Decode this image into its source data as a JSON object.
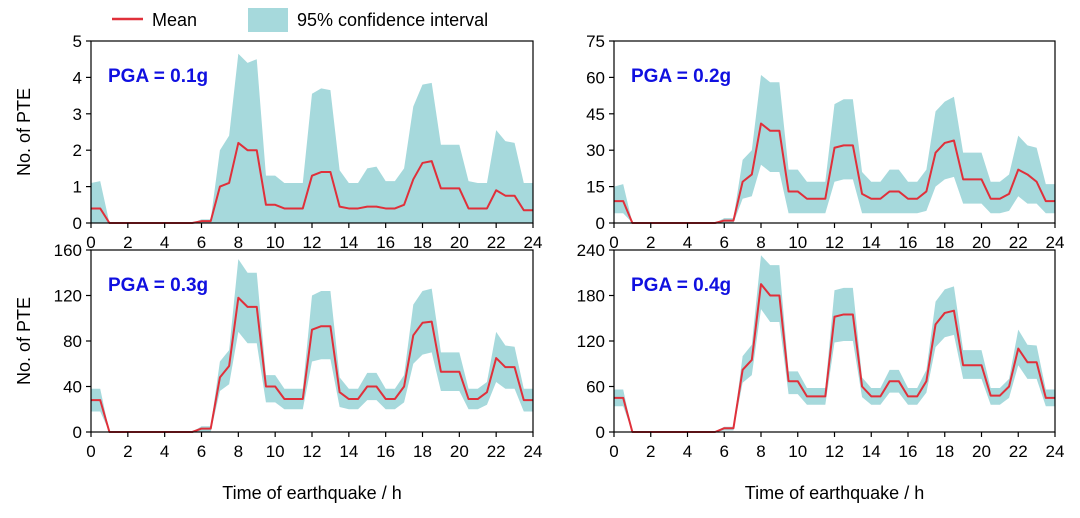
{
  "legend": {
    "mean_label": "Mean",
    "ci_label": "95% confidence interval"
  },
  "colors": {
    "mean": "#e0303a",
    "ci": "#a6d9dc",
    "label": "#1010e0",
    "axis": "#000000"
  },
  "chart_data": [
    {
      "type": "area",
      "title": "PGA = 0.1g",
      "xlabel": "",
      "ylabel": "No. of PTE",
      "xlim": [
        0,
        24
      ],
      "ylim": [
        0,
        5
      ],
      "xticks": [
        "0",
        "2",
        "4",
        "6",
        "8",
        "10",
        "12",
        "14",
        "16",
        "18",
        "20",
        "22",
        "24"
      ],
      "yticks": [
        "0",
        "1",
        "2",
        "3",
        "4",
        "5"
      ],
      "x": [
        0,
        0.5,
        1,
        1.5,
        2,
        2.5,
        3,
        3.5,
        4,
        4.5,
        5,
        5.5,
        6,
        6.5,
        7,
        7.5,
        8,
        8.5,
        9,
        9.5,
        10,
        10.5,
        11,
        11.5,
        12,
        12.5,
        13,
        13.5,
        14,
        14.5,
        15,
        15.5,
        16,
        16.5,
        17,
        17.5,
        18,
        18.5,
        19,
        19.5,
        20,
        20.5,
        21,
        21.5,
        22,
        22.5,
        23,
        23.5,
        24
      ],
      "series": [
        {
          "name": "Mean",
          "values": [
            0.4,
            0.4,
            0,
            0,
            0,
            0,
            0,
            0,
            0,
            0,
            0,
            0,
            0.05,
            0.05,
            1.0,
            1.1,
            2.2,
            2.0,
            2.0,
            0.5,
            0.5,
            0.4,
            0.4,
            0.4,
            1.3,
            1.4,
            1.4,
            0.45,
            0.4,
            0.4,
            0.45,
            0.45,
            0.4,
            0.4,
            0.5,
            1.2,
            1.65,
            1.7,
            0.95,
            0.95,
            0.95,
            0.4,
            0.4,
            0.4,
            0.9,
            0.75,
            0.75,
            0.35,
            0.35
          ]
        },
        {
          "name": "95% CI upper",
          "values": [
            1.1,
            1.15,
            0,
            0,
            0,
            0,
            0,
            0,
            0,
            0,
            0,
            0,
            0.1,
            0.1,
            2.0,
            2.4,
            4.65,
            4.4,
            4.5,
            1.3,
            1.3,
            1.1,
            1.1,
            1.1,
            3.55,
            3.7,
            3.65,
            1.45,
            1.1,
            1.1,
            1.5,
            1.55,
            1.15,
            1.15,
            1.5,
            3.2,
            3.8,
            3.85,
            2.15,
            2.15,
            2.15,
            1.15,
            1.1,
            1.1,
            2.55,
            2.25,
            2.2,
            1.1,
            1.1
          ]
        },
        {
          "name": "95% CI lower",
          "values": [
            0,
            0,
            0,
            0,
            0,
            0,
            0,
            0,
            0,
            0,
            0,
            0,
            0,
            0,
            0,
            0,
            0,
            0,
            0,
            0,
            0,
            0,
            0,
            0,
            0,
            0,
            0,
            0,
            0,
            0,
            0,
            0,
            0,
            0,
            0,
            0,
            0,
            0,
            0,
            0,
            0,
            0,
            0,
            0,
            0,
            0,
            0,
            0,
            0
          ]
        }
      ]
    },
    {
      "type": "area",
      "title": "PGA = 0.2g",
      "xlabel": "",
      "ylabel": "",
      "xlim": [
        0,
        24
      ],
      "ylim": [
        0,
        75
      ],
      "xticks": [
        "0",
        "2",
        "4",
        "6",
        "8",
        "10",
        "12",
        "14",
        "16",
        "18",
        "20",
        "22",
        "24"
      ],
      "yticks": [
        "0",
        "15",
        "30",
        "45",
        "60",
        "75"
      ],
      "x": [
        0,
        0.5,
        1,
        1.5,
        2,
        2.5,
        3,
        3.5,
        4,
        4.5,
        5,
        5.5,
        6,
        6.5,
        7,
        7.5,
        8,
        8.5,
        9,
        9.5,
        10,
        10.5,
        11,
        11.5,
        12,
        12.5,
        13,
        13.5,
        14,
        14.5,
        15,
        15.5,
        16,
        16.5,
        17,
        17.5,
        18,
        18.5,
        19,
        19.5,
        20,
        20.5,
        21,
        21.5,
        22,
        22.5,
        23,
        23.5,
        24
      ],
      "series": [
        {
          "name": "Mean",
          "values": [
            9,
            9,
            0,
            0,
            0,
            0,
            0,
            0,
            0,
            0,
            0,
            0,
            1,
            1,
            17,
            20,
            41,
            38,
            38,
            13,
            13,
            10,
            10,
            10,
            31,
            32,
            32,
            12,
            10,
            10,
            13,
            13,
            10,
            10,
            13,
            29,
            33,
            34,
            18,
            18,
            18,
            10,
            10,
            12,
            22,
            20,
            17,
            9,
            9
          ]
        },
        {
          "name": "95% CI upper",
          "values": [
            15,
            16,
            0,
            0,
            0,
            0,
            0,
            0,
            0,
            0,
            0,
            0,
            2,
            2,
            26,
            30,
            61,
            58,
            58,
            22,
            22,
            17,
            17,
            17,
            49,
            51,
            51,
            21,
            17,
            17,
            22,
            22,
            17,
            17,
            22,
            46,
            50,
            52,
            29,
            29,
            29,
            17,
            17,
            20,
            36,
            32,
            31,
            16,
            16
          ]
        },
        {
          "name": "95% CI lower",
          "values": [
            4,
            4,
            0,
            0,
            0,
            0,
            0,
            0,
            0,
            0,
            0,
            0,
            0,
            0,
            10,
            11,
            24,
            21,
            21,
            4,
            4,
            4,
            4,
            4,
            17,
            18,
            18,
            4,
            4,
            4,
            4,
            4,
            4,
            4,
            5,
            15,
            18,
            19,
            8,
            8,
            8,
            4,
            4,
            5,
            11,
            8,
            8,
            4,
            4
          ]
        }
      ]
    },
    {
      "type": "area",
      "title": "PGA = 0.3g",
      "xlabel": "Time of earthquake / h",
      "ylabel": "No. of PTE",
      "xlim": [
        0,
        24
      ],
      "ylim": [
        0,
        160
      ],
      "xticks": [
        "0",
        "2",
        "4",
        "6",
        "8",
        "10",
        "12",
        "14",
        "16",
        "18",
        "20",
        "22",
        "24"
      ],
      "yticks": [
        "0",
        "40",
        "80",
        "120",
        "160"
      ],
      "x": [
        0,
        0.5,
        1,
        1.5,
        2,
        2.5,
        3,
        3.5,
        4,
        4.5,
        5,
        5.5,
        6,
        6.5,
        7,
        7.5,
        8,
        8.5,
        9,
        9.5,
        10,
        10.5,
        11,
        11.5,
        12,
        12.5,
        13,
        13.5,
        14,
        14.5,
        15,
        15.5,
        16,
        16.5,
        17,
        17.5,
        18,
        18.5,
        19,
        19.5,
        20,
        20.5,
        21,
        21.5,
        22,
        22.5,
        23,
        23.5,
        24
      ],
      "series": [
        {
          "name": "Mean",
          "values": [
            28,
            28,
            0,
            0,
            0,
            0,
            0,
            0,
            0,
            0,
            0,
            0,
            3,
            3,
            48,
            58,
            118,
            110,
            110,
            40,
            40,
            29,
            29,
            29,
            90,
            93,
            93,
            35,
            29,
            29,
            40,
            40,
            29,
            29,
            40,
            85,
            96,
            97,
            53,
            53,
            53,
            29,
            29,
            35,
            65,
            57,
            57,
            28,
            28
          ]
        },
        {
          "name": "95% CI upper",
          "values": [
            38,
            38,
            0,
            0,
            0,
            0,
            0,
            0,
            0,
            0,
            0,
            0,
            5,
            5,
            62,
            72,
            152,
            140,
            140,
            50,
            50,
            38,
            38,
            38,
            120,
            124,
            124,
            48,
            38,
            38,
            52,
            52,
            38,
            38,
            50,
            112,
            124,
            126,
            70,
            70,
            70,
            38,
            38,
            44,
            88,
            76,
            75,
            38,
            38
          ]
        },
        {
          "name": "95% CI lower",
          "values": [
            18,
            18,
            0,
            0,
            0,
            0,
            0,
            0,
            0,
            0,
            0,
            0,
            0,
            0,
            36,
            42,
            88,
            78,
            78,
            26,
            26,
            20,
            20,
            20,
            62,
            64,
            64,
            22,
            20,
            20,
            28,
            28,
            20,
            20,
            26,
            60,
            68,
            70,
            36,
            36,
            36,
            20,
            20,
            24,
            44,
            38,
            38,
            18,
            18
          ]
        }
      ]
    },
    {
      "type": "area",
      "title": "PGA = 0.4g",
      "xlabel": "Time of earthquake / h",
      "ylabel": "",
      "xlim": [
        0,
        24
      ],
      "ylim": [
        0,
        240
      ],
      "xticks": [
        "0",
        "2",
        "4",
        "6",
        "8",
        "10",
        "12",
        "14",
        "16",
        "18",
        "20",
        "22",
        "24"
      ],
      "yticks": [
        "0",
        "60",
        "120",
        "180",
        "240"
      ],
      "x": [
        0,
        0.5,
        1,
        1.5,
        2,
        2.5,
        3,
        3.5,
        4,
        4.5,
        5,
        5.5,
        6,
        6.5,
        7,
        7.5,
        8,
        8.5,
        9,
        9.5,
        10,
        10.5,
        11,
        11.5,
        12,
        12.5,
        13,
        13.5,
        14,
        14.5,
        15,
        15.5,
        16,
        16.5,
        17,
        17.5,
        18,
        18.5,
        19,
        19.5,
        20,
        20.5,
        21,
        21.5,
        22,
        22.5,
        23,
        23.5,
        24
      ],
      "series": [
        {
          "name": "Mean",
          "values": [
            45,
            45,
            0,
            0,
            0,
            0,
            0,
            0,
            0,
            0,
            0,
            0,
            5,
            5,
            82,
            95,
            195,
            180,
            180,
            67,
            67,
            47,
            47,
            47,
            152,
            155,
            155,
            60,
            47,
            47,
            67,
            67,
            47,
            47,
            67,
            142,
            157,
            160,
            88,
            88,
            88,
            48,
            48,
            60,
            110,
            92,
            92,
            45,
            45
          ]
        },
        {
          "name": "95% CI upper",
          "values": [
            56,
            56,
            0,
            0,
            0,
            0,
            0,
            0,
            0,
            0,
            0,
            0,
            7,
            7,
            100,
            115,
            233,
            220,
            220,
            80,
            80,
            58,
            58,
            58,
            187,
            190,
            190,
            72,
            58,
            58,
            82,
            82,
            58,
            58,
            82,
            172,
            188,
            192,
            108,
            108,
            108,
            58,
            58,
            70,
            135,
            115,
            114,
            56,
            56
          ]
        },
        {
          "name": "95% CI lower",
          "values": [
            34,
            34,
            0,
            0,
            0,
            0,
            0,
            0,
            0,
            0,
            0,
            0,
            2,
            2,
            65,
            75,
            162,
            145,
            145,
            50,
            50,
            36,
            36,
            36,
            118,
            120,
            120,
            46,
            36,
            36,
            52,
            52,
            36,
            36,
            52,
            112,
            125,
            128,
            70,
            70,
            70,
            36,
            36,
            45,
            88,
            70,
            70,
            34,
            34
          ]
        }
      ]
    }
  ]
}
